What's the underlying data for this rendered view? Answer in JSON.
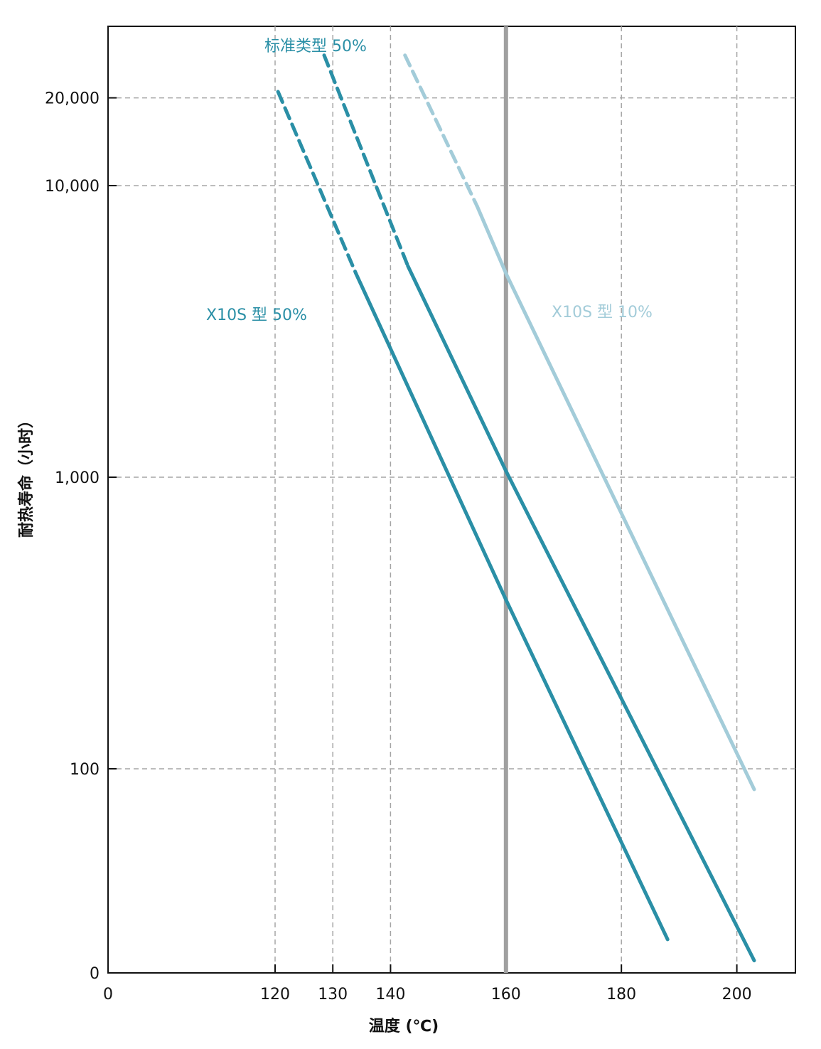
{
  "chart_data": {
    "type": "line",
    "xlabel": "温度 (℃)",
    "ylabel": "耐热寿命（小时）",
    "x_ticks": [
      "0",
      "120",
      "130",
      "140",
      "160",
      "180",
      "200"
    ],
    "y_ticks": [
      "0",
      "100",
      "1,000",
      "10,000",
      "20,000"
    ],
    "y_scale": "log",
    "grid": true,
    "reference_line_x": 160,
    "series": [
      {
        "name": "X10S 型 50%",
        "color": "#2a8fa6",
        "style": "dashed-then-solid",
        "dashed_until_x": 134,
        "points": [
          [
            120.5,
            21000
          ],
          [
            134,
            5000
          ],
          [
            160,
            380
          ],
          [
            188,
            26
          ]
        ]
      },
      {
        "name": "标准类型 50%",
        "color": "#2a8fa6",
        "style": "dashed-then-solid",
        "dashed_until_x": 143,
        "points": [
          [
            128.5,
            28000
          ],
          [
            143,
            5300
          ],
          [
            160,
            1050
          ],
          [
            203,
            22
          ]
        ]
      },
      {
        "name": "X10S 型 10%",
        "color": "#a3ccd9",
        "style": "dashed-then-solid",
        "dashed_until_x": 155,
        "points": [
          [
            142.5,
            28000
          ],
          [
            155,
            8500
          ],
          [
            160,
            5000
          ],
          [
            203,
            85
          ]
        ]
      }
    ]
  }
}
